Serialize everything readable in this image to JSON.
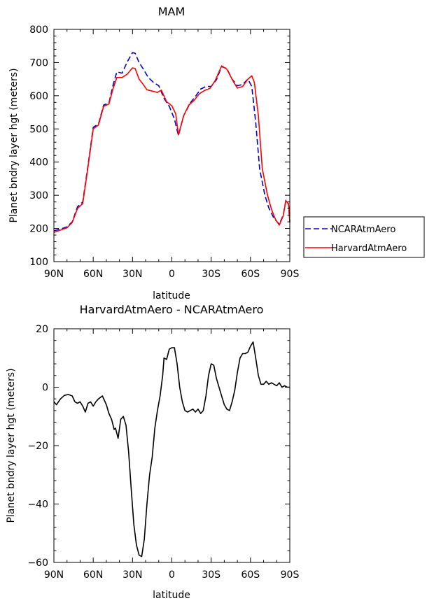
{
  "chart_data": [
    {
      "type": "line",
      "title": "MAM",
      "xlabel": "latitude",
      "ylabel": "Planet bndry layer hgt (meters)",
      "xlim": [
        90,
        -90
      ],
      "ylim": [
        100,
        800
      ],
      "xticks": [
        90,
        60,
        30,
        0,
        -30,
        -60,
        -90
      ],
      "xtick_labels": [
        "90N",
        "60N",
        "30N",
        "0",
        "30S",
        "60S",
        "90S"
      ],
      "yticks": [
        100,
        200,
        300,
        400,
        500,
        600,
        700,
        800
      ],
      "ytick_labels": [
        "100",
        "200",
        "300",
        "400",
        "500",
        "600",
        "700",
        "800"
      ],
      "legend_position": "right",
      "series": [
        {
          "name": "NCARAtmAero",
          "color": "#0000cc",
          "dash": "dashed",
          "points": [
            [
              90,
              193
            ],
            [
              85,
              198
            ],
            [
              80,
              205
            ],
            [
              76,
              220
            ],
            [
              72,
              265
            ],
            [
              68,
              280
            ],
            [
              64,
              390
            ],
            [
              60,
              505
            ],
            [
              56,
              515
            ],
            [
              52,
              572
            ],
            [
              48,
              578
            ],
            [
              45,
              630
            ],
            [
              42,
              672
            ],
            [
              38,
              668
            ],
            [
              34,
              702
            ],
            [
              30,
              730
            ],
            [
              28,
              728
            ],
            [
              25,
              700
            ],
            [
              22,
              682
            ],
            [
              18,
              655
            ],
            [
              14,
              640
            ],
            [
              10,
              630
            ],
            [
              6,
              592
            ],
            [
              2,
              568
            ],
            [
              -2,
              530
            ],
            [
              -5,
              480
            ],
            [
              -9,
              540
            ],
            [
              -14,
              578
            ],
            [
              -18,
              598
            ],
            [
              -22,
              620
            ],
            [
              -26,
              628
            ],
            [
              -30,
              628
            ],
            [
              -34,
              648
            ],
            [
              -38,
              688
            ],
            [
              -42,
              682
            ],
            [
              -46,
              650
            ],
            [
              -50,
              630
            ],
            [
              -54,
              634
            ],
            [
              -58,
              650
            ],
            [
              -61,
              628
            ],
            [
              -64,
              520
            ],
            [
              -67,
              380
            ],
            [
              -71,
              300
            ],
            [
              -74,
              262
            ],
            [
              -78,
              230
            ],
            [
              -82,
              213
            ],
            [
              -85,
              240
            ],
            [
              -87,
              285
            ],
            [
              -89,
              273
            ],
            [
              -90,
              218
            ]
          ]
        },
        {
          "name": "HarvardAtmAero",
          "color": "#ff0000",
          "dash": "solid",
          "points": [
            [
              90,
              188
            ],
            [
              85,
              195
            ],
            [
              80,
              202
            ],
            [
              76,
              218
            ],
            [
              72,
              260
            ],
            [
              68,
              275
            ],
            [
              64,
              385
            ],
            [
              60,
              500
            ],
            [
              56,
              512
            ],
            [
              52,
              568
            ],
            [
              48,
              575
            ],
            [
              45,
              620
            ],
            [
              42,
              655
            ],
            [
              38,
              655
            ],
            [
              34,
              665
            ],
            [
              30,
              684
            ],
            [
              28,
              682
            ],
            [
              25,
              650
            ],
            [
              22,
              635
            ],
            [
              19,
              618
            ],
            [
              15,
              614
            ],
            [
              11,
              610
            ],
            [
              8,
              617
            ],
            [
              4,
              582
            ],
            [
              0,
              570
            ],
            [
              -3,
              545
            ],
            [
              -5,
              482
            ],
            [
              -9,
              540
            ],
            [
              -13,
              572
            ],
            [
              -17,
              586
            ],
            [
              -21,
              606
            ],
            [
              -25,
              616
            ],
            [
              -29,
              622
            ],
            [
              -33,
              645
            ],
            [
              -38,
              690
            ],
            [
              -42,
              680
            ],
            [
              -47,
              642
            ],
            [
              -50,
              623
            ],
            [
              -54,
              628
            ],
            [
              -58,
              650
            ],
            [
              -61,
              660
            ],
            [
              -63,
              640
            ],
            [
              -66,
              540
            ],
            [
              -69,
              380
            ],
            [
              -73,
              300
            ],
            [
              -76,
              258
            ],
            [
              -79,
              228
            ],
            [
              -82,
              210
            ],
            [
              -85,
              238
            ],
            [
              -87,
              283
            ],
            [
              -89,
              275
            ],
            [
              -90,
              220
            ]
          ]
        }
      ]
    },
    {
      "type": "line",
      "title": "HarvardAtmAero - NCARAtmAero",
      "xlabel": "latitude",
      "ylabel": "Planet bndry layer hgt (meters)",
      "xlim": [
        90,
        -90
      ],
      "ylim": [
        -60,
        20
      ],
      "xticks": [
        90,
        60,
        30,
        0,
        -30,
        -60,
        -90
      ],
      "xtick_labels": [
        "90N",
        "60N",
        "30N",
        "0",
        "30S",
        "60S",
        "90S"
      ],
      "yticks": [
        -60,
        -40,
        -20,
        0,
        20
      ],
      "ytick_labels": [
        "−60",
        "−40",
        "−20",
        "0",
        "20"
      ],
      "series": [
        {
          "color": "#000000",
          "dash": "solid",
          "points": [
            [
              90,
              -5
            ],
            [
              88,
              -6
            ],
            [
              85,
              -4
            ],
            [
              82,
              -2.8
            ],
            [
              79,
              -2.5
            ],
            [
              76,
              -3
            ],
            [
              74,
              -5
            ],
            [
              72,
              -5.5
            ],
            [
              70,
              -5
            ],
            [
              68,
              -6.5
            ],
            [
              66,
              -8.5
            ],
            [
              64,
              -5.5
            ],
            [
              62,
              -5
            ],
            [
              60,
              -6.5
            ],
            [
              58,
              -5
            ],
            [
              56,
              -4
            ],
            [
              53,
              -3
            ],
            [
              50,
              -6
            ],
            [
              48,
              -9
            ],
            [
              46,
              -11
            ],
            [
              44,
              -14.5
            ],
            [
              43,
              -14
            ],
            [
              41,
              -17.5
            ],
            [
              39,
              -11
            ],
            [
              37,
              -10
            ],
            [
              35,
              -13
            ],
            [
              33,
              -22
            ],
            [
              31,
              -35
            ],
            [
              29,
              -47
            ],
            [
              27,
              -54
            ],
            [
              25,
              -57.5
            ],
            [
              23,
              -58
            ],
            [
              21,
              -52
            ],
            [
              19,
              -40
            ],
            [
              17,
              -30
            ],
            [
              15,
              -24
            ],
            [
              13,
              -14
            ],
            [
              11,
              -8
            ],
            [
              9,
              -3
            ],
            [
              7,
              4
            ],
            [
              6,
              10
            ],
            [
              4,
              9.5
            ],
            [
              2,
              13
            ],
            [
              0,
              13.5
            ],
            [
              -2,
              13.5
            ],
            [
              -4,
              8
            ],
            [
              -6,
              0
            ],
            [
              -8,
              -5
            ],
            [
              -10,
              -8
            ],
            [
              -12,
              -8.5
            ],
            [
              -14,
              -8
            ],
            [
              -16,
              -7.5
            ],
            [
              -18,
              -8.5
            ],
            [
              -20,
              -7.5
            ],
            [
              -22,
              -9
            ],
            [
              -24,
              -8
            ],
            [
              -26,
              -3
            ],
            [
              -28,
              4
            ],
            [
              -30,
              8
            ],
            [
              -32,
              7.5
            ],
            [
              -34,
              3
            ],
            [
              -36,
              0
            ],
            [
              -38,
              -3
            ],
            [
              -40,
              -6
            ],
            [
              -42,
              -7.5
            ],
            [
              -44,
              -8
            ],
            [
              -46,
              -5
            ],
            [
              -48,
              -1
            ],
            [
              -50,
              5
            ],
            [
              -52,
              10
            ],
            [
              -54,
              11.5
            ],
            [
              -56,
              11.5
            ],
            [
              -58,
              12
            ],
            [
              -60,
              14
            ],
            [
              -62,
              15.5
            ],
            [
              -64,
              10
            ],
            [
              -66,
              4
            ],
            [
              -68,
              1
            ],
            [
              -70,
              1
            ],
            [
              -72,
              2
            ],
            [
              -74,
              1
            ],
            [
              -76,
              1.5
            ],
            [
              -78,
              1
            ],
            [
              -80,
              0.5
            ],
            [
              -82,
              1.5
            ],
            [
              -84,
              0
            ],
            [
              -86,
              0.5
            ],
            [
              -88,
              0
            ],
            [
              -90,
              0
            ]
          ]
        }
      ]
    }
  ],
  "legend": {
    "items": [
      {
        "label": "NCARAtmAero",
        "color": "#0000cc",
        "dash": "dashed"
      },
      {
        "label": "HarvardAtmAero",
        "color": "#ff0000",
        "dash": "solid"
      }
    ]
  }
}
